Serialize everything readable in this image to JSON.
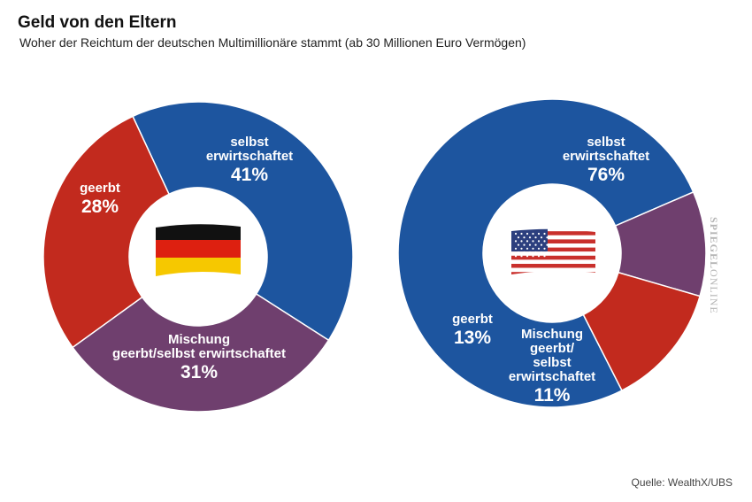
{
  "header": {
    "title": "Geld von den Eltern",
    "subtitle": "Woher der Reichtum der deutschen Multimillionäre stammt (ab 30 Millionen Euro Vermögen)"
  },
  "source": "Quelle: WealthX/UBS",
  "watermark": {
    "bold": "SPIEGEL",
    "light": "ONLINE"
  },
  "colors": {
    "selbst": "#1d559f",
    "geerbt": "#c22a1e",
    "mischung": "#6f3f6e"
  },
  "chart_data": [
    {
      "type": "pie",
      "variant": "donut",
      "flag": "germany-flag",
      "categories": [
        "selbst erwirtschaftet",
        "Mischung geerbt/selbst erwirtschaftet",
        "geerbt"
      ],
      "values": [
        41,
        31,
        28
      ],
      "unit": "%",
      "labels": [
        {
          "name_lines": [
            "selbst",
            "erwirtschaftet"
          ],
          "value": "41%"
        },
        {
          "name_lines": [
            "Mischung",
            "geerbt/selbst erwirtschaftet"
          ],
          "value": "31%"
        },
        {
          "name_lines": [
            "geerbt"
          ],
          "value": "28%"
        }
      ]
    },
    {
      "type": "pie",
      "variant": "donut",
      "flag": "usa-flag",
      "categories": [
        "selbst erwirtschaftet",
        "Mischung geerbt/selbst erwirtschaftet",
        "geerbt"
      ],
      "values": [
        76,
        11,
        13
      ],
      "unit": "%",
      "labels": [
        {
          "name_lines": [
            "selbst",
            "erwirtschaftet"
          ],
          "value": "76%"
        },
        {
          "name_lines": [
            "Mischung",
            "geerbt/",
            "selbst",
            "erwirtschaftet"
          ],
          "value": "11%"
        },
        {
          "name_lines": [
            "geerbt"
          ],
          "value": "13%"
        }
      ]
    }
  ]
}
